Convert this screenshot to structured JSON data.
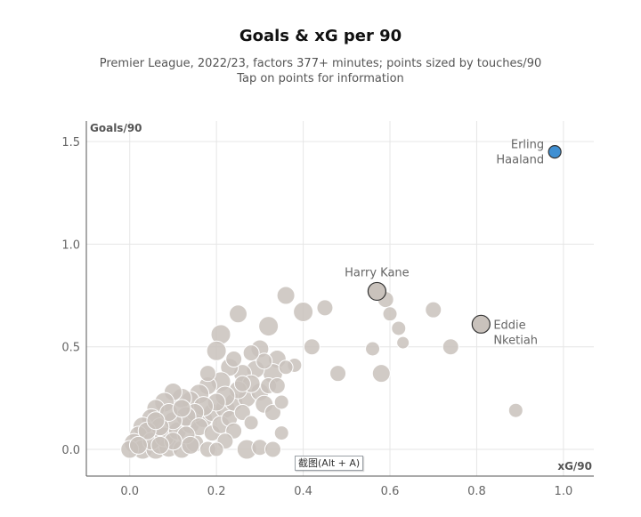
{
  "header": {
    "title": "Goals & xG per 90",
    "subtitle_line1": "Premier League, 2022/23, factors 377+ minutes; points sized by touches/90",
    "subtitle_line2": "Tap on points for information"
  },
  "tooltip": {
    "text": "截图(Alt + A)"
  },
  "chart_data": {
    "type": "scatter",
    "title": "Goals & xG per 90",
    "subtitle": "Premier League, 2022/23, factors 377+ minutes; points sized by touches/90",
    "xlabel": "xG/90",
    "ylabel": "Goals/90",
    "xlim": [
      -0.1,
      1.07
    ],
    "ylim": [
      -0.13,
      1.6
    ],
    "xticks": [
      "0.0",
      "0.2",
      "0.4",
      "0.6",
      "0.8",
      "1.0"
    ],
    "yticks": [
      "0.0",
      "0.5",
      "1.0",
      "1.5"
    ],
    "grid": true,
    "colors": {
      "default": "#c9c2bc",
      "highlight": "#3f8fd2",
      "label": "#666666"
    },
    "points": [
      {
        "x": 0.98,
        "y": 1.45,
        "size": 7,
        "label": "Erling Haaland",
        "highlight": true
      },
      {
        "x": 0.57,
        "y": 0.77,
        "size": 10,
        "label": "Harry Kane"
      },
      {
        "x": 0.81,
        "y": 0.61,
        "size": 10,
        "label": "Eddie Nketiah"
      },
      {
        "x": 0.36,
        "y": 0.75,
        "size": 10
      },
      {
        "x": 0.45,
        "y": 0.69,
        "size": 9
      },
      {
        "x": 0.4,
        "y": 0.67,
        "size": 11
      },
      {
        "x": 0.59,
        "y": 0.73,
        "size": 9
      },
      {
        "x": 0.6,
        "y": 0.66,
        "size": 8
      },
      {
        "x": 0.62,
        "y": 0.59,
        "size": 8
      },
      {
        "x": 0.63,
        "y": 0.52,
        "size": 7
      },
      {
        "x": 0.56,
        "y": 0.49,
        "size": 8
      },
      {
        "x": 0.7,
        "y": 0.68,
        "size": 9
      },
      {
        "x": 0.74,
        "y": 0.5,
        "size": 9
      },
      {
        "x": 0.89,
        "y": 0.19,
        "size": 8
      },
      {
        "x": 0.58,
        "y": 0.37,
        "size": 10
      },
      {
        "x": 0.48,
        "y": 0.37,
        "size": 9
      },
      {
        "x": 0.42,
        "y": 0.5,
        "size": 9
      },
      {
        "x": 0.38,
        "y": 0.41,
        "size": 8
      },
      {
        "x": 0.32,
        "y": 0.6,
        "size": 11
      },
      {
        "x": 0.25,
        "y": 0.66,
        "size": 10
      },
      {
        "x": 0.21,
        "y": 0.56,
        "size": 11
      },
      {
        "x": 0.2,
        "y": 0.48,
        "size": 11
      },
      {
        "x": 0.3,
        "y": 0.49,
        "size": 10
      },
      {
        "x": 0.34,
        "y": 0.44,
        "size": 10
      },
      {
        "x": 0.33,
        "y": 0.37,
        "size": 11
      },
      {
        "x": 0.29,
        "y": 0.39,
        "size": 10
      },
      {
        "x": 0.26,
        "y": 0.37,
        "size": 10
      },
      {
        "x": 0.23,
        "y": 0.4,
        "size": 10
      },
      {
        "x": 0.21,
        "y": 0.33,
        "size": 11
      },
      {
        "x": 0.18,
        "y": 0.31,
        "size": 10
      },
      {
        "x": 0.16,
        "y": 0.27,
        "size": 11
      },
      {
        "x": 0.14,
        "y": 0.24,
        "size": 10
      },
      {
        "x": 0.12,
        "y": 0.25,
        "size": 11
      },
      {
        "x": 0.1,
        "y": 0.28,
        "size": 10
      },
      {
        "x": 0.08,
        "y": 0.23,
        "size": 11
      },
      {
        "x": 0.06,
        "y": 0.2,
        "size": 10
      },
      {
        "x": 0.05,
        "y": 0.15,
        "size": 11
      },
      {
        "x": 0.03,
        "y": 0.11,
        "size": 11
      },
      {
        "x": 0.02,
        "y": 0.07,
        "size": 10
      },
      {
        "x": 0.01,
        "y": 0.03,
        "size": 11
      },
      {
        "x": 0.03,
        "y": 0.0,
        "size": 11
      },
      {
        "x": 0.06,
        "y": 0.0,
        "size": 11
      },
      {
        "x": 0.09,
        "y": 0.01,
        "size": 11
      },
      {
        "x": 0.12,
        "y": 0.0,
        "size": 10
      },
      {
        "x": 0.15,
        "y": 0.03,
        "size": 10
      },
      {
        "x": 0.18,
        "y": 0.0,
        "size": 9
      },
      {
        "x": 0.05,
        "y": 0.04,
        "size": 10
      },
      {
        "x": 0.08,
        "y": 0.06,
        "size": 11
      },
      {
        "x": 0.11,
        "y": 0.09,
        "size": 10
      },
      {
        "x": 0.14,
        "y": 0.12,
        "size": 10
      },
      {
        "x": 0.17,
        "y": 0.15,
        "size": 10
      },
      {
        "x": 0.19,
        "y": 0.18,
        "size": 10
      },
      {
        "x": 0.22,
        "y": 0.2,
        "size": 11
      },
      {
        "x": 0.24,
        "y": 0.23,
        "size": 10
      },
      {
        "x": 0.27,
        "y": 0.25,
        "size": 10
      },
      {
        "x": 0.3,
        "y": 0.28,
        "size": 10
      },
      {
        "x": 0.31,
        "y": 0.22,
        "size": 10
      },
      {
        "x": 0.33,
        "y": 0.18,
        "size": 9
      },
      {
        "x": 0.35,
        "y": 0.23,
        "size": 8
      },
      {
        "x": 0.32,
        "y": 0.31,
        "size": 9
      },
      {
        "x": 0.28,
        "y": 0.32,
        "size": 10
      },
      {
        "x": 0.25,
        "y": 0.29,
        "size": 10
      },
      {
        "x": 0.22,
        "y": 0.26,
        "size": 11
      },
      {
        "x": 0.2,
        "y": 0.23,
        "size": 10
      },
      {
        "x": 0.17,
        "y": 0.21,
        "size": 11
      },
      {
        "x": 0.15,
        "y": 0.18,
        "size": 10
      },
      {
        "x": 0.13,
        "y": 0.16,
        "size": 11
      },
      {
        "x": 0.1,
        "y": 0.14,
        "size": 10
      },
      {
        "x": 0.07,
        "y": 0.11,
        "size": 10
      },
      {
        "x": 0.04,
        "y": 0.09,
        "size": 10
      },
      {
        "x": 0.09,
        "y": 0.18,
        "size": 10
      },
      {
        "x": 0.12,
        "y": 0.2,
        "size": 10
      },
      {
        "x": 0.06,
        "y": 0.14,
        "size": 10
      },
      {
        "x": 0.16,
        "y": 0.11,
        "size": 10
      },
      {
        "x": 0.19,
        "y": 0.08,
        "size": 9
      },
      {
        "x": 0.21,
        "y": 0.12,
        "size": 10
      },
      {
        "x": 0.23,
        "y": 0.15,
        "size": 9
      },
      {
        "x": 0.26,
        "y": 0.18,
        "size": 9
      },
      {
        "x": 0.28,
        "y": 0.13,
        "size": 8
      },
      {
        "x": 0.24,
        "y": 0.09,
        "size": 9
      },
      {
        "x": 0.13,
        "y": 0.07,
        "size": 10
      },
      {
        "x": 0.1,
        "y": 0.04,
        "size": 10
      },
      {
        "x": 0.27,
        "y": 0.0,
        "size": 11
      },
      {
        "x": 0.3,
        "y": 0.01,
        "size": 9
      },
      {
        "x": 0.35,
        "y": 0.08,
        "size": 8
      },
      {
        "x": 0.33,
        "y": 0.0,
        "size": 9
      },
      {
        "x": 0.34,
        "y": 0.31,
        "size": 9
      },
      {
        "x": 0.36,
        "y": 0.4,
        "size": 8
      },
      {
        "x": 0.31,
        "y": 0.43,
        "size": 9
      },
      {
        "x": 0.28,
        "y": 0.47,
        "size": 9
      },
      {
        "x": 0.24,
        "y": 0.44,
        "size": 9
      },
      {
        "x": 0.18,
        "y": 0.37,
        "size": 9
      },
      {
        "x": 0.26,
        "y": 0.32,
        "size": 9
      },
      {
        "x": 0.22,
        "y": 0.04,
        "size": 9
      },
      {
        "x": 0.2,
        "y": 0.0,
        "size": 8
      },
      {
        "x": 0.07,
        "y": 0.02,
        "size": 10
      },
      {
        "x": 0.14,
        "y": 0.02,
        "size": 10
      },
      {
        "x": 0.0,
        "y": 0.0,
        "size": 10
      },
      {
        "x": 0.02,
        "y": 0.02,
        "size": 10
      }
    ]
  }
}
